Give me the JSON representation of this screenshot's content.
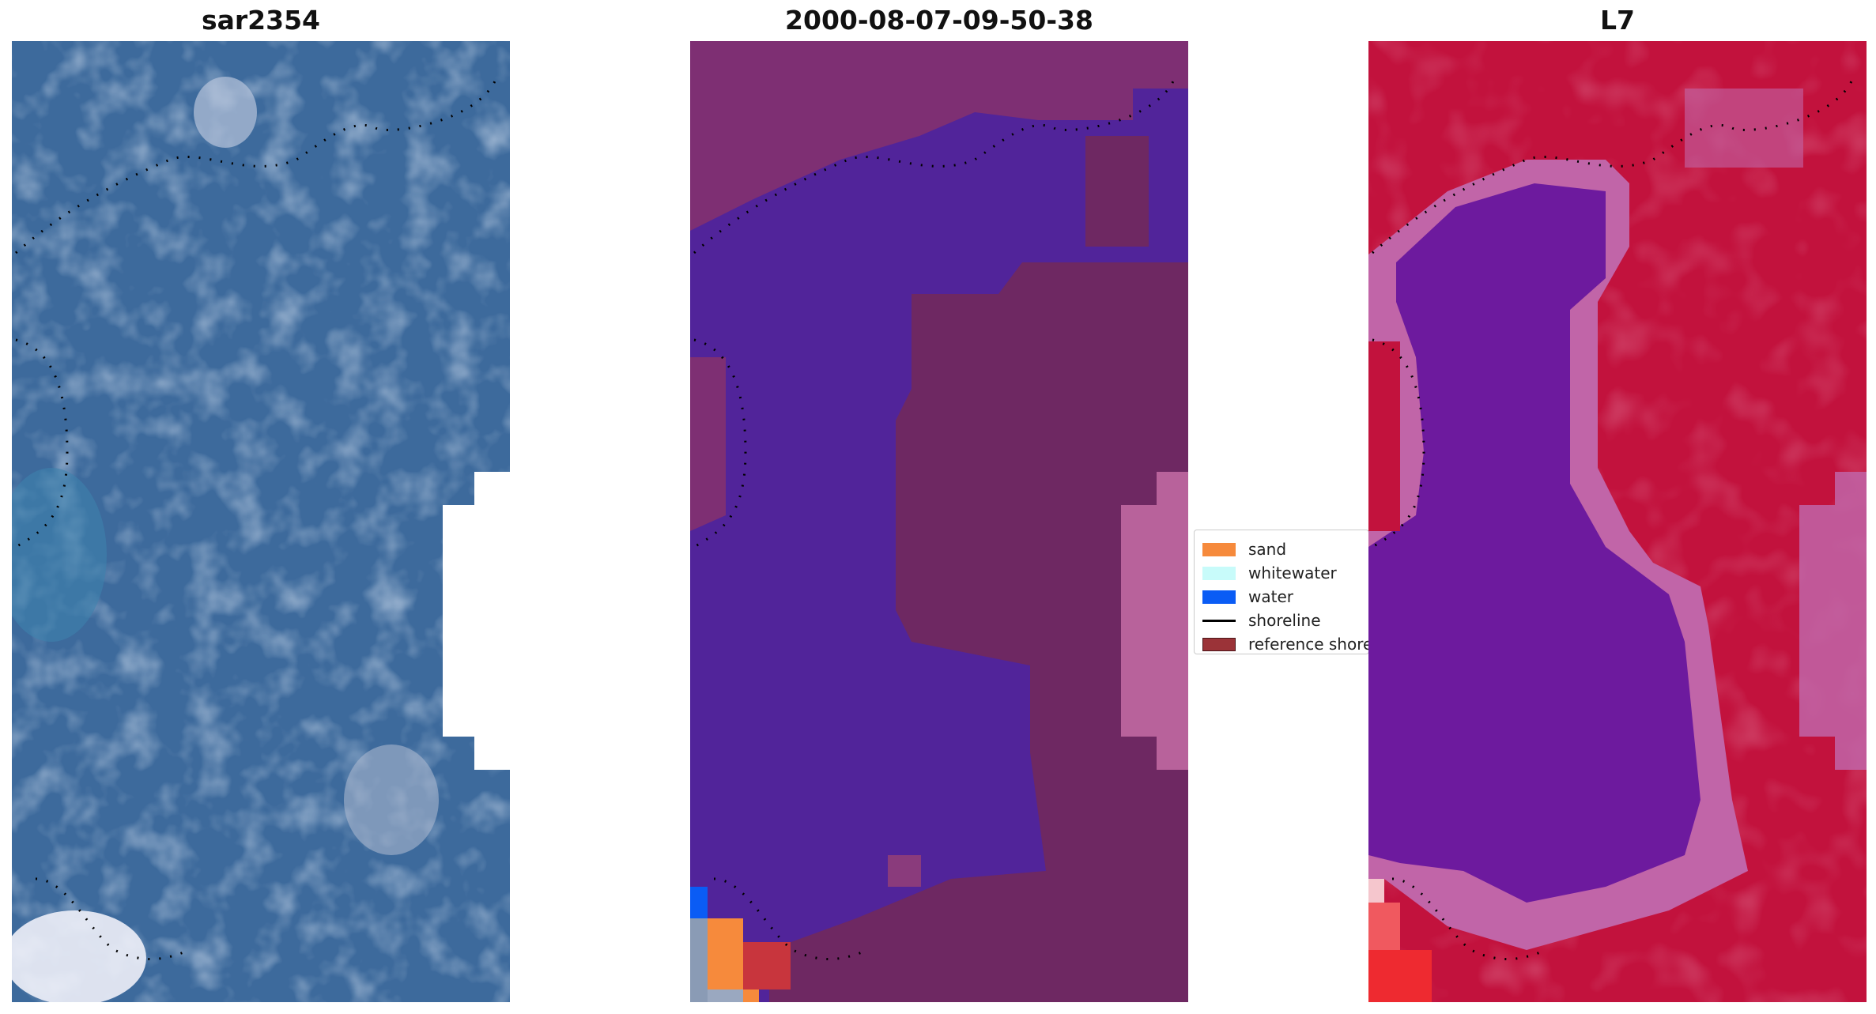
{
  "panels": [
    {
      "title": "sar2354"
    },
    {
      "title": "2000-08-07-09-50-38"
    },
    {
      "title": "L7"
    }
  ],
  "legend": {
    "items": [
      {
        "label": "sand",
        "kind": "patch",
        "color": "#f68a3c"
      },
      {
        "label": "whitewater",
        "kind": "patch",
        "color": "#c8fbfa"
      },
      {
        "label": "water",
        "kind": "patch",
        "color": "#0a5cf5"
      },
      {
        "label": "shoreline",
        "kind": "line",
        "color": "#000000"
      },
      {
        "label": "reference shoreline",
        "kind": "patch",
        "color": "#9b3338"
      }
    ]
  },
  "colors": {
    "rgb_base": "#3d6a9c",
    "class_overlay": "#51249a",
    "land_overlay": "#6b2a63",
    "ndwi_water": "#6d1a9e",
    "ndwi_land": "#c2123d"
  }
}
